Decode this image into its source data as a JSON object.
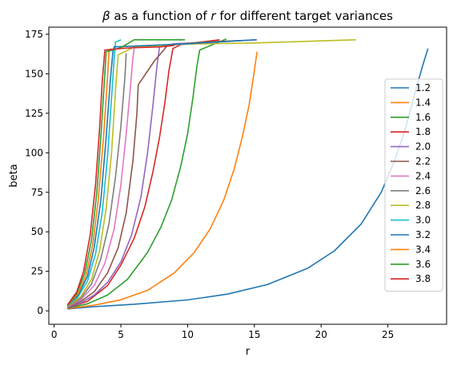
{
  "chart_data": {
    "type": "line",
    "title_parts": [
      {
        "text": "β",
        "italic": true
      },
      {
        "text": " as a function of ",
        "italic": false
      },
      {
        "text": "r",
        "italic": true
      },
      {
        "text": " for different target variances",
        "italic": false
      }
    ],
    "xlabel": "r",
    "ylabel": "beta",
    "xlim": [
      -0.4,
      29.4
    ],
    "ylim": [
      -8.5,
      179.5
    ],
    "xticks": [
      0,
      5,
      10,
      15,
      20,
      25
    ],
    "yticks": [
      0,
      25,
      50,
      75,
      100,
      125,
      150,
      175
    ],
    "grid": false,
    "legend_location": "right",
    "series": [
      {
        "name": "1.2",
        "color": "#1f77b4",
        "points": [
          [
            1.0,
            1.2
          ],
          [
            3,
            2.6
          ],
          [
            6,
            4.2
          ],
          [
            10,
            6.9
          ],
          [
            13,
            10.6
          ],
          [
            16,
            16.7
          ],
          [
            19,
            27
          ],
          [
            21,
            38
          ],
          [
            23,
            55
          ],
          [
            24.5,
            75
          ],
          [
            25.5,
            95
          ],
          [
            26.3,
            115
          ],
          [
            27,
            137
          ],
          [
            27.6,
            155
          ],
          [
            28,
            166
          ]
        ]
      },
      {
        "name": "1.4",
        "color": "#ff7f0e",
        "points": [
          [
            1.0,
            1.4
          ],
          [
            3,
            3.6
          ],
          [
            5,
            7
          ],
          [
            7,
            13
          ],
          [
            9,
            24
          ],
          [
            10.5,
            37
          ],
          [
            11.7,
            52
          ],
          [
            12.7,
            70
          ],
          [
            13.5,
            90
          ],
          [
            14.1,
            110
          ],
          [
            14.6,
            130
          ],
          [
            15,
            152
          ],
          [
            15.2,
            164
          ]
        ]
      },
      {
        "name": "1.6",
        "color": "#2ca02c",
        "points": [
          [
            1.0,
            1.6
          ],
          [
            2.5,
            4.5
          ],
          [
            4,
            10
          ],
          [
            5.5,
            20
          ],
          [
            7,
            37
          ],
          [
            8,
            53
          ],
          [
            8.8,
            70
          ],
          [
            9.5,
            92
          ],
          [
            10,
            112
          ],
          [
            10.4,
            135
          ],
          [
            10.7,
            155
          ],
          [
            10.9,
            165
          ],
          [
            12.6,
            171
          ],
          [
            12.9,
            172
          ]
        ]
      },
      {
        "name": "1.8",
        "color": "#d62728",
        "points": [
          [
            1.0,
            1.8
          ],
          [
            2.5,
            6
          ],
          [
            4,
            16
          ],
          [
            5,
            29
          ],
          [
            6,
            46
          ],
          [
            6.8,
            66
          ],
          [
            7.4,
            88
          ],
          [
            7.9,
            110
          ],
          [
            8.3,
            132
          ],
          [
            8.6,
            152
          ],
          [
            8.9,
            166
          ],
          [
            9.5,
            168.5
          ],
          [
            12.4,
            171.5
          ]
        ]
      },
      {
        "name": "2.0",
        "color": "#9467bd",
        "points": [
          [
            1.0,
            2.0
          ],
          [
            2,
            5
          ],
          [
            3,
            10
          ],
          [
            4,
            18
          ],
          [
            5,
            31
          ],
          [
            5.8,
            48
          ],
          [
            6.5,
            72
          ],
          [
            7,
            100
          ],
          [
            7.4,
            130
          ],
          [
            7.7,
            155
          ],
          [
            7.9,
            167
          ],
          [
            9,
            169
          ],
          [
            15.2,
            171.5
          ]
        ]
      },
      {
        "name": "2.2",
        "color": "#8c564b",
        "points": [
          [
            1.0,
            2.2
          ],
          [
            2,
            6
          ],
          [
            3,
            12
          ],
          [
            4,
            24
          ],
          [
            4.8,
            40
          ],
          [
            5.4,
            62
          ],
          [
            5.9,
            95
          ],
          [
            6.2,
            125
          ],
          [
            6.3,
            143
          ],
          [
            7.5,
            158
          ],
          [
            8.5,
            168
          ],
          [
            11,
            170
          ],
          [
            14,
            171
          ]
        ]
      },
      {
        "name": "2.4",
        "color": "#e377c2",
        "points": [
          [
            1.0,
            2.4
          ],
          [
            2,
            7
          ],
          [
            3,
            16
          ],
          [
            3.8,
            30
          ],
          [
            4.5,
            52
          ],
          [
            5,
            80
          ],
          [
            5.4,
            112
          ],
          [
            5.7,
            140
          ],
          [
            5.9,
            160
          ],
          [
            6,
            166
          ]
        ]
      },
      {
        "name": "2.6",
        "color": "#7f7f7f",
        "points": [
          [
            1.0,
            2.6
          ],
          [
            2,
            8
          ],
          [
            2.8,
            17
          ],
          [
            3.5,
            33
          ],
          [
            4.1,
            55
          ],
          [
            4.6,
            85
          ],
          [
            5,
            117
          ],
          [
            5.3,
            148
          ],
          [
            5.4,
            163
          ]
        ]
      },
      {
        "name": "2.8",
        "color": "#bcbd22",
        "points": [
          [
            1.0,
            2.8
          ],
          [
            2,
            9
          ],
          [
            2.8,
            20
          ],
          [
            3.4,
            38
          ],
          [
            3.9,
            65
          ],
          [
            4.3,
            100
          ],
          [
            4.6,
            140
          ],
          [
            4.8,
            162
          ],
          [
            6,
            167
          ],
          [
            10,
            168.8
          ],
          [
            15,
            169.5
          ],
          [
            22.6,
            171.5
          ]
        ]
      },
      {
        "name": "3.0",
        "color": "#17becf",
        "points": [
          [
            1.0,
            3.0
          ],
          [
            1.8,
            9
          ],
          [
            2.5,
            19
          ],
          [
            3.1,
            36
          ],
          [
            3.6,
            62
          ],
          [
            4,
            98
          ],
          [
            4.3,
            135
          ],
          [
            4.5,
            160
          ],
          [
            4.6,
            170
          ],
          [
            5,
            171.5
          ]
        ]
      },
      {
        "name": "3.2",
        "color": "#1f77b4",
        "points": [
          [
            1.0,
            3.2
          ],
          [
            1.8,
            10
          ],
          [
            2.5,
            22
          ],
          [
            3,
            40
          ],
          [
            3.5,
            70
          ],
          [
            3.9,
            110
          ],
          [
            4.2,
            145
          ],
          [
            4.4,
            164
          ],
          [
            4.5,
            167
          ],
          [
            6,
            167.5
          ],
          [
            10,
            169
          ],
          [
            15.1,
            171.5
          ]
        ]
      },
      {
        "name": "3.4",
        "color": "#ff7f0e",
        "points": [
          [
            1.0,
            3.4
          ],
          [
            1.8,
            11
          ],
          [
            2.4,
            23
          ],
          [
            2.9,
            42
          ],
          [
            3.3,
            70
          ],
          [
            3.7,
            110
          ],
          [
            4,
            148
          ],
          [
            4.1,
            164
          ],
          [
            4.3,
            166
          ]
        ]
      },
      {
        "name": "3.6",
        "color": "#2ca02c",
        "points": [
          [
            1.0,
            3.6
          ],
          [
            1.7,
            11
          ],
          [
            2.3,
            24
          ],
          [
            2.8,
            45
          ],
          [
            3.2,
            75
          ],
          [
            3.5,
            110
          ],
          [
            3.8,
            150
          ],
          [
            3.9,
            164
          ],
          [
            5,
            166.5
          ],
          [
            6,
            171.5
          ],
          [
            9.8,
            171.5
          ]
        ]
      },
      {
        "name": "3.8",
        "color": "#d62728",
        "points": [
          [
            1.0,
            3.8
          ],
          [
            1.7,
            12
          ],
          [
            2.2,
            25
          ],
          [
            2.7,
            48
          ],
          [
            3.1,
            80
          ],
          [
            3.4,
            115
          ],
          [
            3.6,
            145
          ],
          [
            3.8,
            165
          ],
          [
            5,
            166
          ],
          [
            6,
            166.5
          ],
          [
            8,
            167
          ],
          [
            9,
            168
          ]
        ]
      }
    ]
  }
}
